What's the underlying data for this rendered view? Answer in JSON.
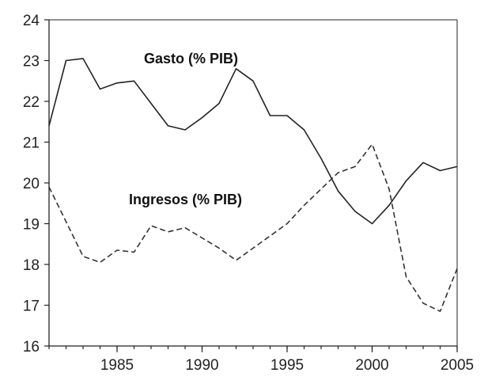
{
  "chart_data": {
    "type": "line",
    "title": "",
    "xlabel": "",
    "ylabel": "",
    "xlim": [
      1981,
      2005
    ],
    "ylim": [
      16,
      24
    ],
    "x_ticks": [
      1985,
      1990,
      1995,
      2000,
      2005
    ],
    "y_ticks": [
      16,
      17,
      18,
      19,
      20,
      21,
      22,
      23,
      24
    ],
    "grid": false,
    "legend": "none",
    "x": [
      1981,
      1982,
      1983,
      1984,
      1985,
      1986,
      1987,
      1988,
      1989,
      1990,
      1991,
      1992,
      1993,
      1994,
      1995,
      1996,
      1997,
      1998,
      1999,
      2000,
      2001,
      2002,
      2003,
      2004,
      2005
    ],
    "series": [
      {
        "name": "Gasto (% PIB)",
        "style": "solid",
        "color": "#222222",
        "values": [
          21.4,
          23.0,
          23.05,
          22.3,
          22.45,
          22.5,
          21.95,
          21.4,
          21.3,
          21.6,
          21.95,
          22.8,
          22.5,
          21.65,
          21.65,
          21.3,
          20.6,
          19.8,
          19.3,
          19.0,
          19.45,
          20.05,
          20.5,
          20.3,
          20.4
        ]
      },
      {
        "name": "Ingresos (% PIB)",
        "style": "dashed",
        "color": "#333333",
        "values": [
          19.9,
          19.05,
          18.2,
          18.05,
          18.35,
          18.3,
          18.95,
          18.8,
          18.9,
          18.65,
          18.4,
          18.1,
          18.4,
          18.7,
          19.0,
          19.45,
          19.85,
          20.25,
          20.4,
          20.95,
          19.85,
          17.7,
          17.05,
          16.85,
          17.9
        ]
      }
    ]
  }
}
